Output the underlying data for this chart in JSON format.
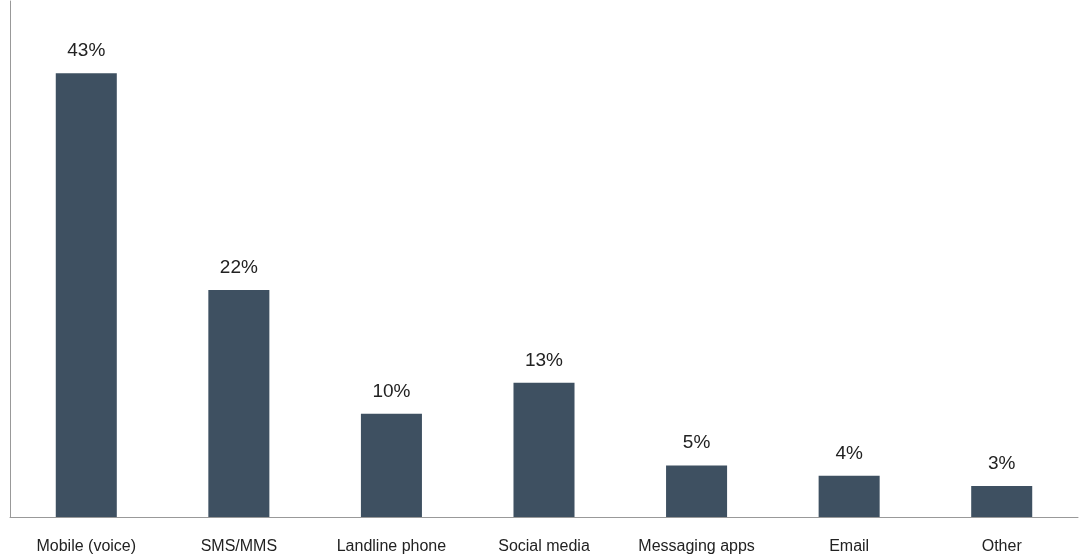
{
  "chart_data": {
    "type": "bar",
    "categories": [
      "Mobile (voice)",
      "SMS/MMS",
      "Landline phone",
      "Social media",
      "Messaging apps",
      "Email",
      "Other"
    ],
    "values": [
      43,
      22,
      10,
      13,
      5,
      4,
      3
    ],
    "value_labels": [
      "43%",
      "22%",
      "10%",
      "13%",
      "5%",
      "4%",
      "3%"
    ],
    "color": "#3e5061",
    "ylim": [
      0,
      50
    ],
    "tick_labels": "x",
    "grid": false
  }
}
